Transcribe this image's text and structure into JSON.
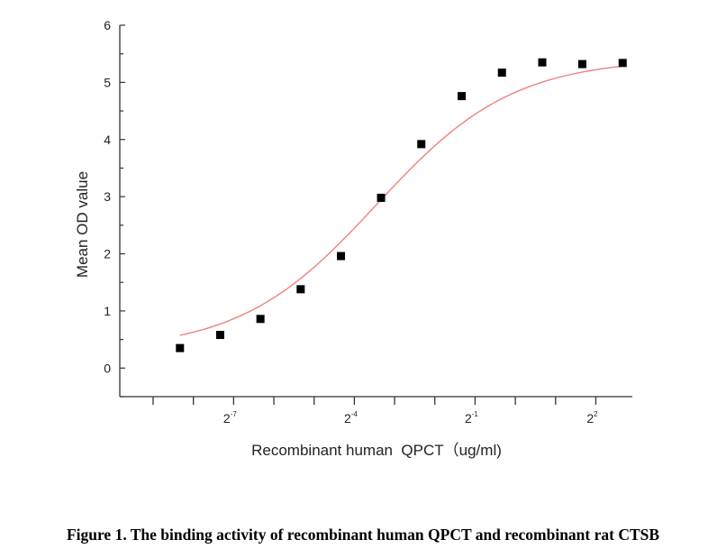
{
  "chart_data": {
    "type": "scatter",
    "xlabel": "Recombinant human  QPCT（ug/ml)",
    "ylabel": "Mean OD value",
    "x_scale": "log2",
    "x_tick_labels": [
      {
        "base": "2",
        "exp": "-7",
        "value": 0.0078125
      },
      {
        "base": "2",
        "exp": "-4",
        "value": 0.0625
      },
      {
        "base": "2",
        "exp": "-1",
        "value": 0.5
      },
      {
        "base": "2",
        "exp": "2",
        "value": 4
      }
    ],
    "xlim": [
      0.0011,
      7.5
    ],
    "ylim": [
      -0.5,
      6
    ],
    "y_ticks": [
      0,
      1,
      2,
      3,
      4,
      5,
      6
    ],
    "grid": false,
    "points": {
      "x": [
        0.0031,
        0.0062,
        0.0124,
        0.0248,
        0.0496,
        0.099,
        0.198,
        0.397,
        0.794,
        1.59,
        3.17,
        6.35
      ],
      "y": [
        0.35,
        0.58,
        0.86,
        1.38,
        1.96,
        2.98,
        3.92,
        4.76,
        5.17,
        5.35,
        5.32,
        5.34
      ],
      "marker": "square",
      "color": "#000000"
    },
    "fit_curve": {
      "type": "sigmoidal fit",
      "color": "#f08080"
    }
  },
  "caption": "Figure 1. The binding activity of recombinant human QPCT and recombinant rat CTSB"
}
